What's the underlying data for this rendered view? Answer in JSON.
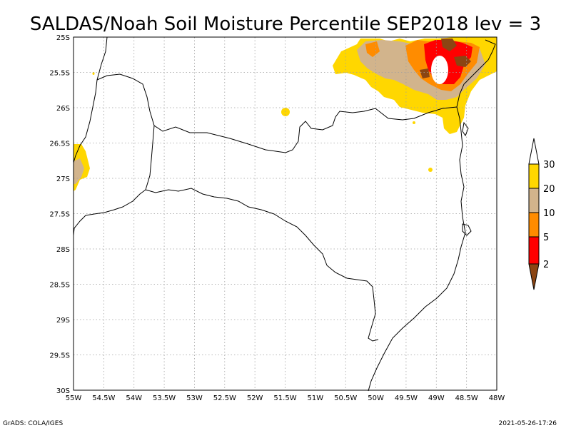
{
  "title": "SALDAS/Noah Soil Moisture Percentile SEP2018 lev = 3",
  "x_ticks": [
    "55W",
    "54.5W",
    "54W",
    "53.5W",
    "53W",
    "52.5W",
    "52W",
    "51.5W",
    "51W",
    "50.5W",
    "50W",
    "49.5W",
    "49W",
    "48.5W",
    "48W"
  ],
  "y_ticks": [
    "25S",
    "25.5S",
    "26S",
    "26.5S",
    "27S",
    "27.5S",
    "28S",
    "28.5S",
    "29S",
    "29.5S",
    "30S"
  ],
  "colorbar": {
    "labels": [
      "2",
      "5",
      "10",
      "20",
      "30"
    ],
    "colors": {
      "lt2": "#8b4513",
      "2to5": "#ff0000",
      "5to10": "#ff8c00",
      "10to20": "#d2b48c",
      "20to30": "#ffd700",
      "gt30": "#ffffff"
    }
  },
  "footer_left": "GrADS: COLA/IGES",
  "footer_right": "2021-05-26-17:26"
}
